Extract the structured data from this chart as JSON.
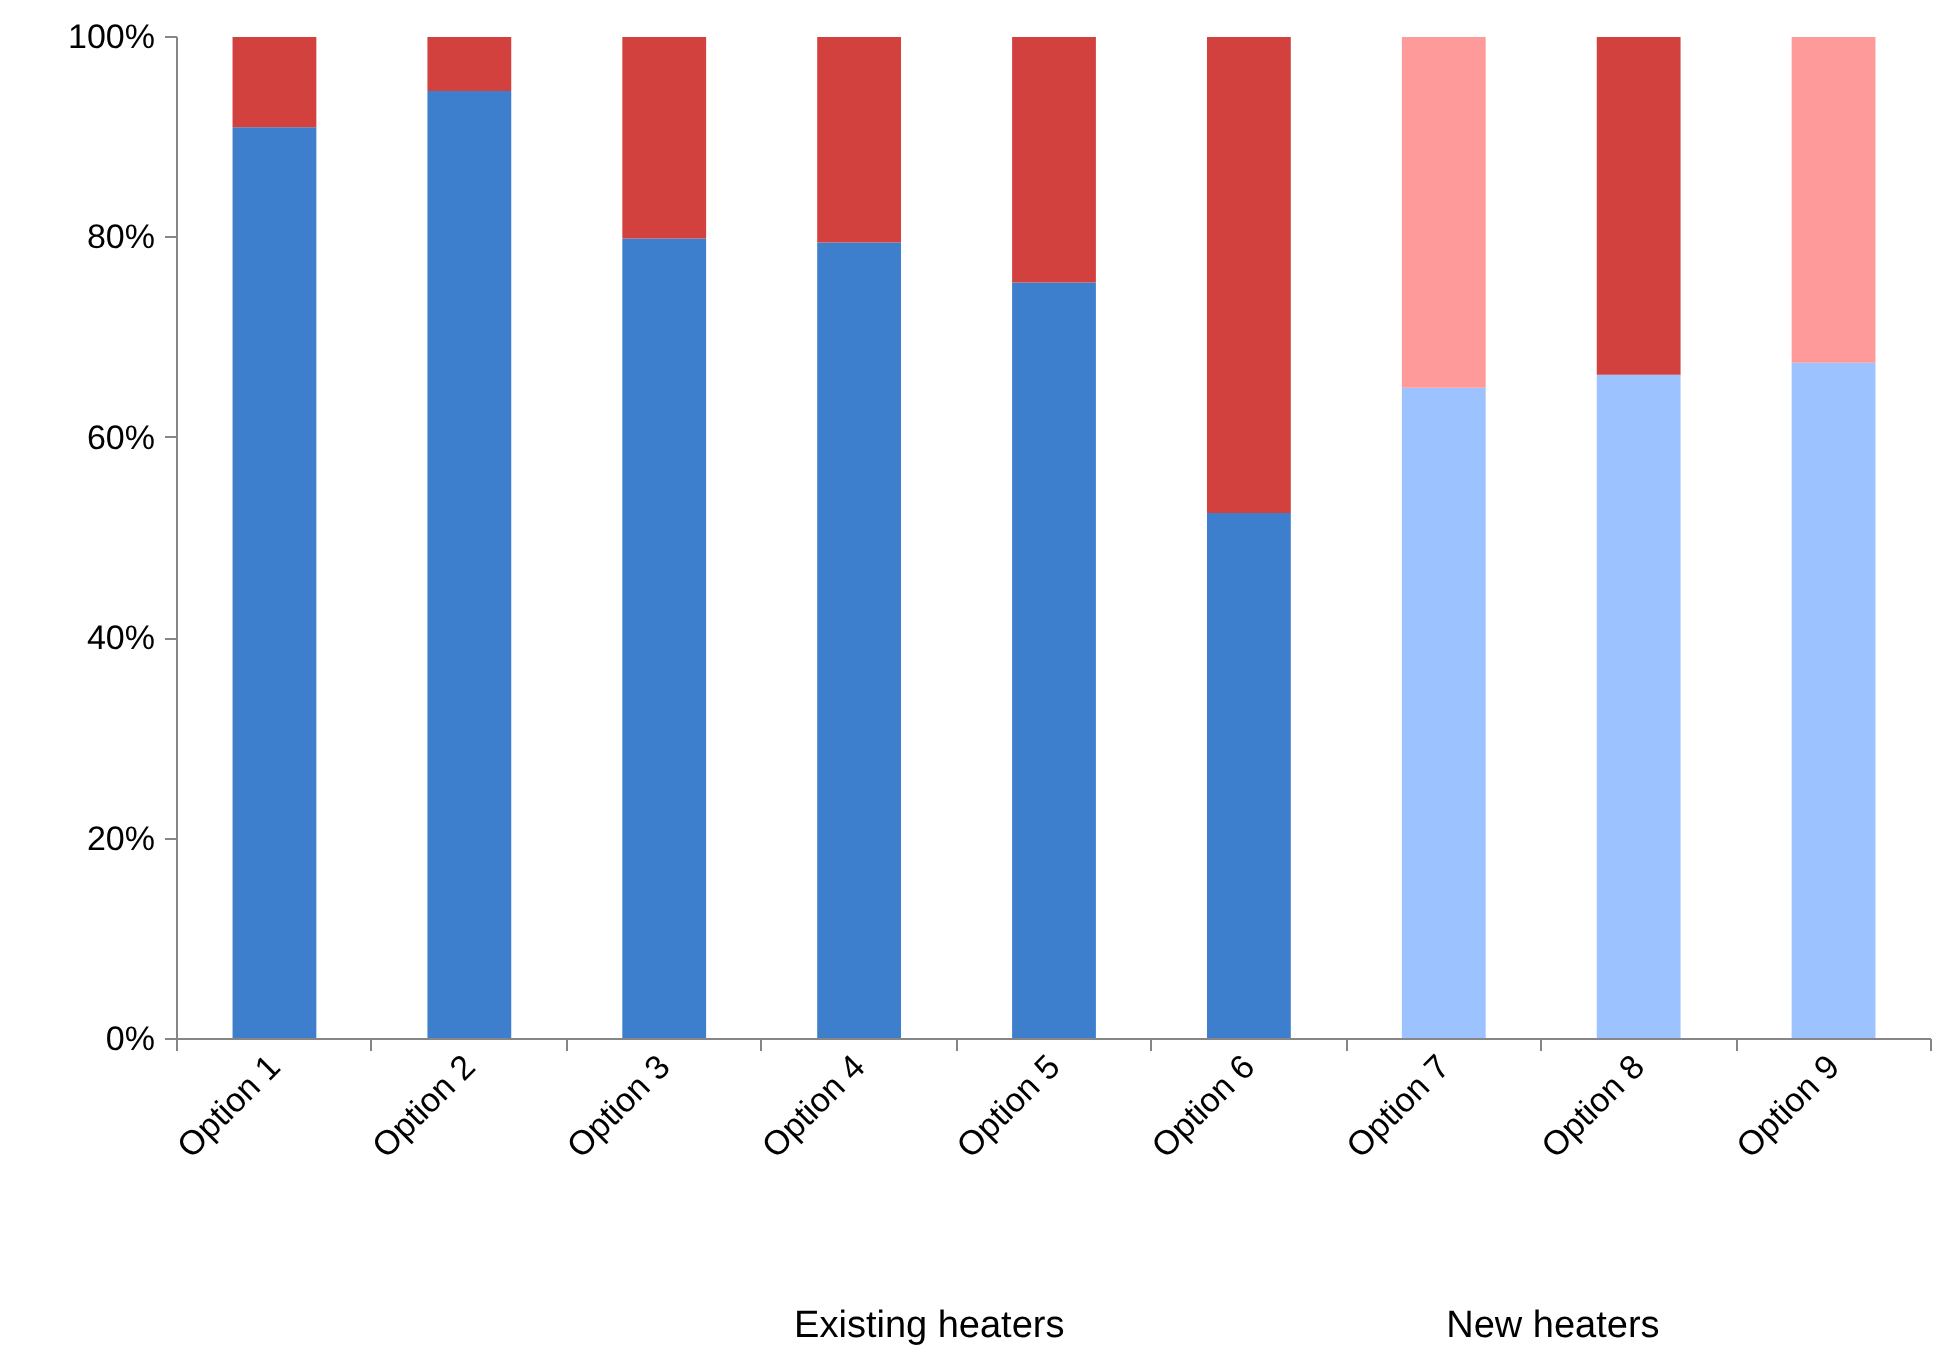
{
  "chart_data": {
    "type": "bar",
    "stacked": true,
    "categories": [
      "Option 1",
      "Option 2",
      "Option 3",
      "Option 4",
      "Option 5",
      "Option 6",
      "Option 7",
      "Option 8",
      "Option 9"
    ],
    "series": [
      {
        "colors": [
          "#3d7fcc",
          "#3d7fcc",
          "#3d7fcc",
          "#3d7fcc",
          "#3d7fcc",
          "#3d7fcc",
          "#9cc2ff",
          "#9cc2ff",
          "#9cc2ff"
        ],
        "values": [
          91.0,
          94.6,
          79.9,
          79.5,
          75.5,
          52.5,
          65.0,
          66.3,
          67.5
        ]
      },
      {
        "colors": [
          "#d2413e",
          "#d2413e",
          "#d2413e",
          "#d2413e",
          "#d2413e",
          "#d2413e",
          "#ff9a9a",
          "#d2413e",
          "#ff9a9a"
        ],
        "values": [
          9.0,
          5.4,
          20.1,
          20.5,
          24.5,
          47.5,
          35.0,
          33.7,
          32.5
        ]
      }
    ],
    "ylim": [
      0,
      100
    ],
    "yticks": [
      {
        "value": 0,
        "label": "0%"
      },
      {
        "value": 20,
        "label": "20%"
      },
      {
        "value": 40,
        "label": "40%"
      },
      {
        "value": 60,
        "label": "60%"
      },
      {
        "value": 80,
        "label": "80%"
      },
      {
        "value": 100,
        "label": "100%"
      }
    ],
    "grid": false,
    "annotations": [
      "Existing heaters",
      "New heaters"
    ]
  }
}
